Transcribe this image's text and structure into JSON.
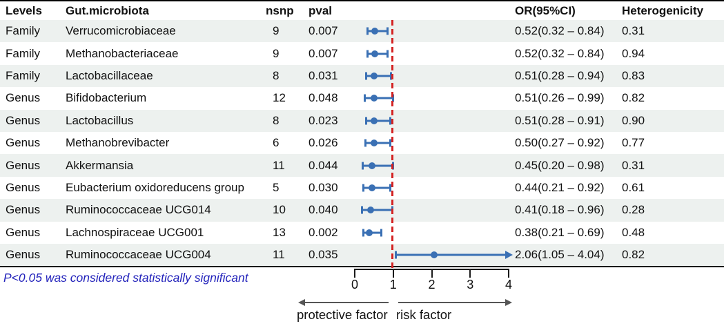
{
  "header": {
    "levels": "Levels",
    "microbiota": "Gut.microbiota",
    "nsnp": "nsnp",
    "pval": "pval",
    "or_ci": "OR(95%CI)",
    "heterogeneity": "Heterogenicity"
  },
  "rows": [
    {
      "level": "Family",
      "name": "Verrucomicrobiaceae",
      "nsnp": "9",
      "pval": "0.007",
      "or_ci": "0.52(0.32 – 0.84)",
      "het": "0.31"
    },
    {
      "level": "Family",
      "name": "Methanobacteriaceae",
      "nsnp": "9",
      "pval": "0.007",
      "or_ci": "0.52(0.32 – 0.84)",
      "het": "0.94"
    },
    {
      "level": "Family",
      "name": "Lactobacillaceae",
      "nsnp": "8",
      "pval": "0.031",
      "or_ci": "0.51(0.28 – 0.94)",
      "het": "0.83"
    },
    {
      "level": "Genus",
      "name": "Bifidobacterium",
      "nsnp": "12",
      "pval": "0.048",
      "or_ci": "0.51(0.26 – 0.99)",
      "het": "0.82"
    },
    {
      "level": "Genus",
      "name": "Lactobacillus",
      "nsnp": "8",
      "pval": "0.023",
      "or_ci": "0.51(0.28 – 0.91)",
      "het": "0.90"
    },
    {
      "level": "Genus",
      "name": "Methanobrevibacter",
      "nsnp": "6",
      "pval": "0.026",
      "or_ci": "0.50(0.27 – 0.92)",
      "het": "0.77"
    },
    {
      "level": "Genus",
      "name": "Akkermansia",
      "nsnp": "11",
      "pval": "0.044",
      "or_ci": "0.45(0.20 – 0.98)",
      "het": "0.31"
    },
    {
      "level": "Genus",
      "name": "Eubacterium oxidoreducens group",
      "nsnp": "5",
      "pval": "0.030",
      "or_ci": "0.44(0.21 – 0.92)",
      "het": "0.61"
    },
    {
      "level": "Genus",
      "name": "Ruminococcaceae UCG014",
      "nsnp": "10",
      "pval": "0.040",
      "or_ci": "0.41(0.18 – 0.96)",
      "het": "0.28"
    },
    {
      "level": "Genus",
      "name": "Lachnospiraceae UCG001",
      "nsnp": "13",
      "pval": "0.002",
      "or_ci": "0.38(0.21 – 0.69)",
      "het": "0.48"
    },
    {
      "level": "Genus",
      "name": "Ruminococcaceae UCG004",
      "nsnp": "11",
      "pval": "0.035",
      "or_ci": "2.06(1.05 – 4.04)",
      "het": "0.82"
    }
  ],
  "chart_data": {
    "type": "scatter",
    "subtype": "forest-plot",
    "xlim": [
      0,
      4.2
    ],
    "x_ticks": [
      0,
      1,
      2,
      3,
      4
    ],
    "reference_line_x": 1,
    "grid": false,
    "points": [
      {
        "label": "Verrucomicrobiaceae",
        "or": 0.52,
        "low": 0.32,
        "high": 0.84
      },
      {
        "label": "Methanobacteriaceae",
        "or": 0.52,
        "low": 0.32,
        "high": 0.84
      },
      {
        "label": "Lactobacillaceae",
        "or": 0.51,
        "low": 0.28,
        "high": 0.94
      },
      {
        "label": "Bifidobacterium",
        "or": 0.51,
        "low": 0.26,
        "high": 0.99
      },
      {
        "label": "Lactobacillus",
        "or": 0.51,
        "low": 0.28,
        "high": 0.91
      },
      {
        "label": "Methanobrevibacter",
        "or": 0.5,
        "low": 0.27,
        "high": 0.92
      },
      {
        "label": "Akkermansia",
        "or": 0.45,
        "low": 0.2,
        "high": 0.98
      },
      {
        "label": "Eubacterium oxidoreducens group",
        "or": 0.44,
        "low": 0.21,
        "high": 0.92
      },
      {
        "label": "Ruminococcaceae UCG014",
        "or": 0.41,
        "low": 0.18,
        "high": 0.96
      },
      {
        "label": "Lachnospiraceae UCG001",
        "or": 0.38,
        "low": 0.21,
        "high": 0.69
      },
      {
        "label": "Ruminococcaceae UCG004",
        "or": 2.06,
        "low": 1.05,
        "high": 4.04,
        "arrow": true
      }
    ]
  },
  "axis": {
    "ticks": [
      "0",
      "1",
      "2",
      "3",
      "4"
    ],
    "left_label": "protective factor",
    "right_label": "risk factor"
  },
  "footnote": "P<0.05 was considered statistically significant",
  "colors": {
    "marker": "#3a70b4",
    "ref_line": "#d42323",
    "row_alt": "#edf1ef",
    "footnote": "#2222bb",
    "arrow": "#555555"
  }
}
